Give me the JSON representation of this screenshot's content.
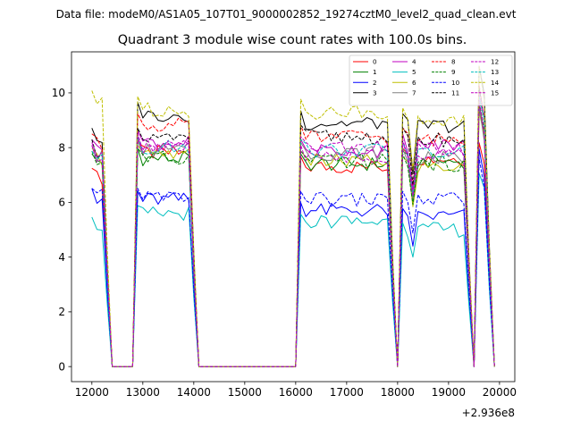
{
  "chart_data": {
    "type": "line",
    "suptitle": "Data file: modeM0/AS1A05_107T01_9000002852_19274cztM0_level2_quad_clean.evt",
    "title": "Quadrant 3 module wise count rates with 100.0s bins.",
    "xlabel": "",
    "ylabel": "",
    "offset_text": "+2.936e8",
    "xlim": [
      11600,
      20300
    ],
    "ylim": [
      -0.55,
      11.5
    ],
    "xticks": [
      12000,
      13000,
      14000,
      15000,
      16000,
      17000,
      18000,
      19000,
      20000
    ],
    "yticks": [
      0,
      2,
      4,
      6,
      8,
      10
    ],
    "x_start": 12000,
    "x_step": 100,
    "x_count": 80,
    "segments": [
      [
        0,
        3
      ],
      [
        9,
        20
      ],
      [
        41,
        59
      ],
      [
        61,
        74
      ],
      [
        76,
        78
      ]
    ],
    "legend_location": "upper right",
    "series": [
      {
        "name": "0",
        "color": "#ff0000",
        "dash": "solid",
        "level": [
          6.9,
          7.8,
          7.3,
          7.6,
          7.3
        ]
      },
      {
        "name": "1",
        "color": "#008000",
        "dash": "solid",
        "level": [
          7.4,
          7.6,
          7.4,
          7.5,
          8.4
        ]
      },
      {
        "name": "2",
        "color": "#0000ff",
        "dash": "solid",
        "level": [
          6.2,
          6.1,
          5.7,
          5.5,
          7.1
        ]
      },
      {
        "name": "3",
        "color": "#000000",
        "dash": "solid",
        "level": [
          8.3,
          9.2,
          8.9,
          8.8,
          9.8
        ]
      },
      {
        "name": "4",
        "color": "#c000c0",
        "dash": "solid",
        "level": [
          7.9,
          8.2,
          7.9,
          8.1,
          8.6
        ]
      },
      {
        "name": "5",
        "color": "#00bfbf",
        "dash": "solid",
        "level": [
          5.2,
          5.6,
          5.3,
          5.0,
          6.3
        ]
      },
      {
        "name": "6",
        "color": "#bfbf00",
        "dash": "solid",
        "level": [
          7.6,
          7.7,
          7.5,
          7.3,
          8.3
        ]
      },
      {
        "name": "7",
        "color": "#808080",
        "dash": "solid",
        "level": [
          7.7,
          7.9,
          7.8,
          7.6,
          8.5
        ]
      },
      {
        "name": "8",
        "color": "#ff0000",
        "dash": "dashed",
        "level": [
          8.1,
          8.8,
          8.4,
          8.3,
          9.2
        ]
      },
      {
        "name": "9",
        "color": "#008000",
        "dash": "dashed",
        "level": [
          7.5,
          7.6,
          7.5,
          7.4,
          8.7
        ]
      },
      {
        "name": "10",
        "color": "#0000ff",
        "dash": "dashed",
        "level": [
          6.2,
          6.2,
          6.1,
          6.1,
          6.8
        ]
      },
      {
        "name": "11",
        "color": "#000000",
        "dash": "dashed",
        "level": [
          7.9,
          8.3,
          8.4,
          8.3,
          9.1
        ]
      },
      {
        "name": "12",
        "color": "#c000c0",
        "dash": "dashed",
        "level": [
          7.8,
          8.1,
          8.0,
          7.9,
          8.9
        ]
      },
      {
        "name": "13",
        "color": "#00bfbf",
        "dash": "dashed",
        "level": [
          7.5,
          8.0,
          7.9,
          7.8,
          8.8
        ]
      },
      {
        "name": "14",
        "color": "#bfbf00",
        "dash": "dashed",
        "level": [
          9.6,
          9.4,
          9.3,
          9.0,
          9.8
        ]
      },
      {
        "name": "15",
        "color": "#c000c0",
        "dash": "dashed",
        "level": [
          7.7,
          8.0,
          7.7,
          7.8,
          8.7
        ]
      }
    ]
  }
}
